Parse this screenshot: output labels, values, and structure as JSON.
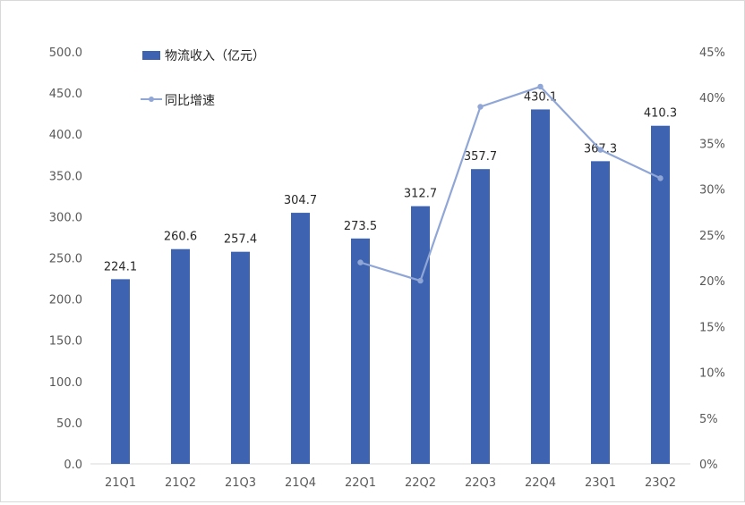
{
  "chart_data": {
    "type": "bar",
    "title": "",
    "xlabel": "",
    "ylabel": "",
    "categories": [
      "21Q1",
      "21Q2",
      "21Q3",
      "21Q4",
      "22Q1",
      "22Q2",
      "22Q3",
      "22Q4",
      "23Q1",
      "23Q2"
    ],
    "series": [
      {
        "name": "物流收入（亿元）",
        "type": "bar",
        "axis": "left",
        "color": "#3e63b0",
        "values": [
          224.1,
          260.6,
          257.4,
          304.7,
          273.5,
          312.7,
          357.7,
          430.1,
          367.3,
          410.3
        ],
        "labels": [
          "224.1",
          "260.6",
          "257.4",
          "304.7",
          "273.5",
          "312.7",
          "357.7",
          "430.1",
          "367.3",
          "410.3"
        ]
      },
      {
        "name": "同比增速",
        "type": "line",
        "axis": "right",
        "color": "#8fa6d6",
        "values": [
          null,
          null,
          null,
          null,
          0.22,
          0.2,
          0.39,
          0.412,
          0.343,
          0.312
        ]
      }
    ],
    "ylim": [
      0,
      500
    ],
    "y_ticks": [
      "0.0",
      "50.0",
      "100.0",
      "150.0",
      "200.0",
      "250.0",
      "300.0",
      "350.0",
      "400.0",
      "450.0",
      "500.0"
    ],
    "y2lim": [
      0,
      0.45
    ],
    "y2_ticks": [
      "0%",
      "5%",
      "10%",
      "15%",
      "20%",
      "25%",
      "30%",
      "35%",
      "40%",
      "45%"
    ],
    "grid": false,
    "legend": "top-left"
  }
}
